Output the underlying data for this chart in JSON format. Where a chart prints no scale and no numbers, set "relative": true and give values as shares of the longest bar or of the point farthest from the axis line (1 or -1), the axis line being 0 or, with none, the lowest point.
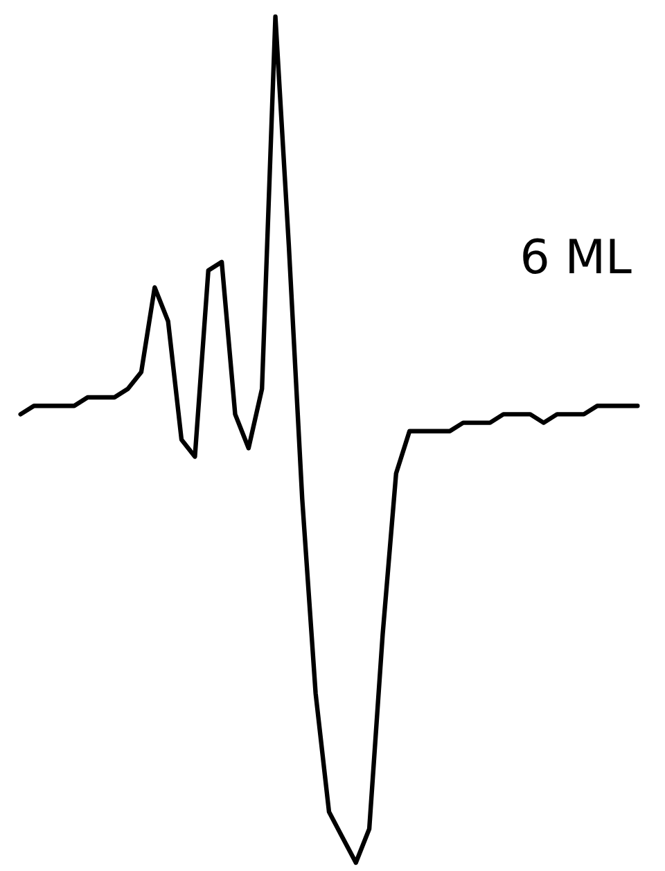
{
  "chart_data": {
    "type": "line",
    "relative": true,
    "annotations": [
      "6 ML"
    ],
    "categories": [
      null,
      null,
      null,
      null,
      null,
      null,
      null,
      null,
      null,
      null,
      null,
      null,
      null,
      null,
      null,
      null,
      null,
      null,
      null,
      null,
      null,
      null,
      null,
      null,
      null,
      null,
      null,
      null,
      null,
      null,
      null,
      null,
      null,
      null,
      null,
      null,
      null,
      null,
      null,
      null,
      null,
      null,
      null,
      null,
      null,
      null,
      null
    ],
    "series": [
      {
        "color": "#000000",
        "values": [
          0.53,
          0.54,
          0.54,
          0.54,
          0.54,
          0.55,
          0.55,
          0.55,
          0.56,
          0.58,
          0.68,
          0.64,
          0.5,
          0.48,
          0.7,
          0.71,
          0.53,
          0.49,
          0.56,
          1,
          0.73,
          0.43,
          0.2,
          0.06,
          0.03,
          0,
          0.04,
          0.27,
          0.46,
          0.51,
          0.51,
          0.51,
          0.51,
          0.52,
          0.52,
          0.52,
          0.53,
          0.53,
          0.53,
          0.52,
          0.53,
          0.53,
          0.53,
          0.54,
          0.54,
          0.54,
          0.54
        ]
      }
    ],
    "marker": "none",
    "line_style": "solid"
  }
}
